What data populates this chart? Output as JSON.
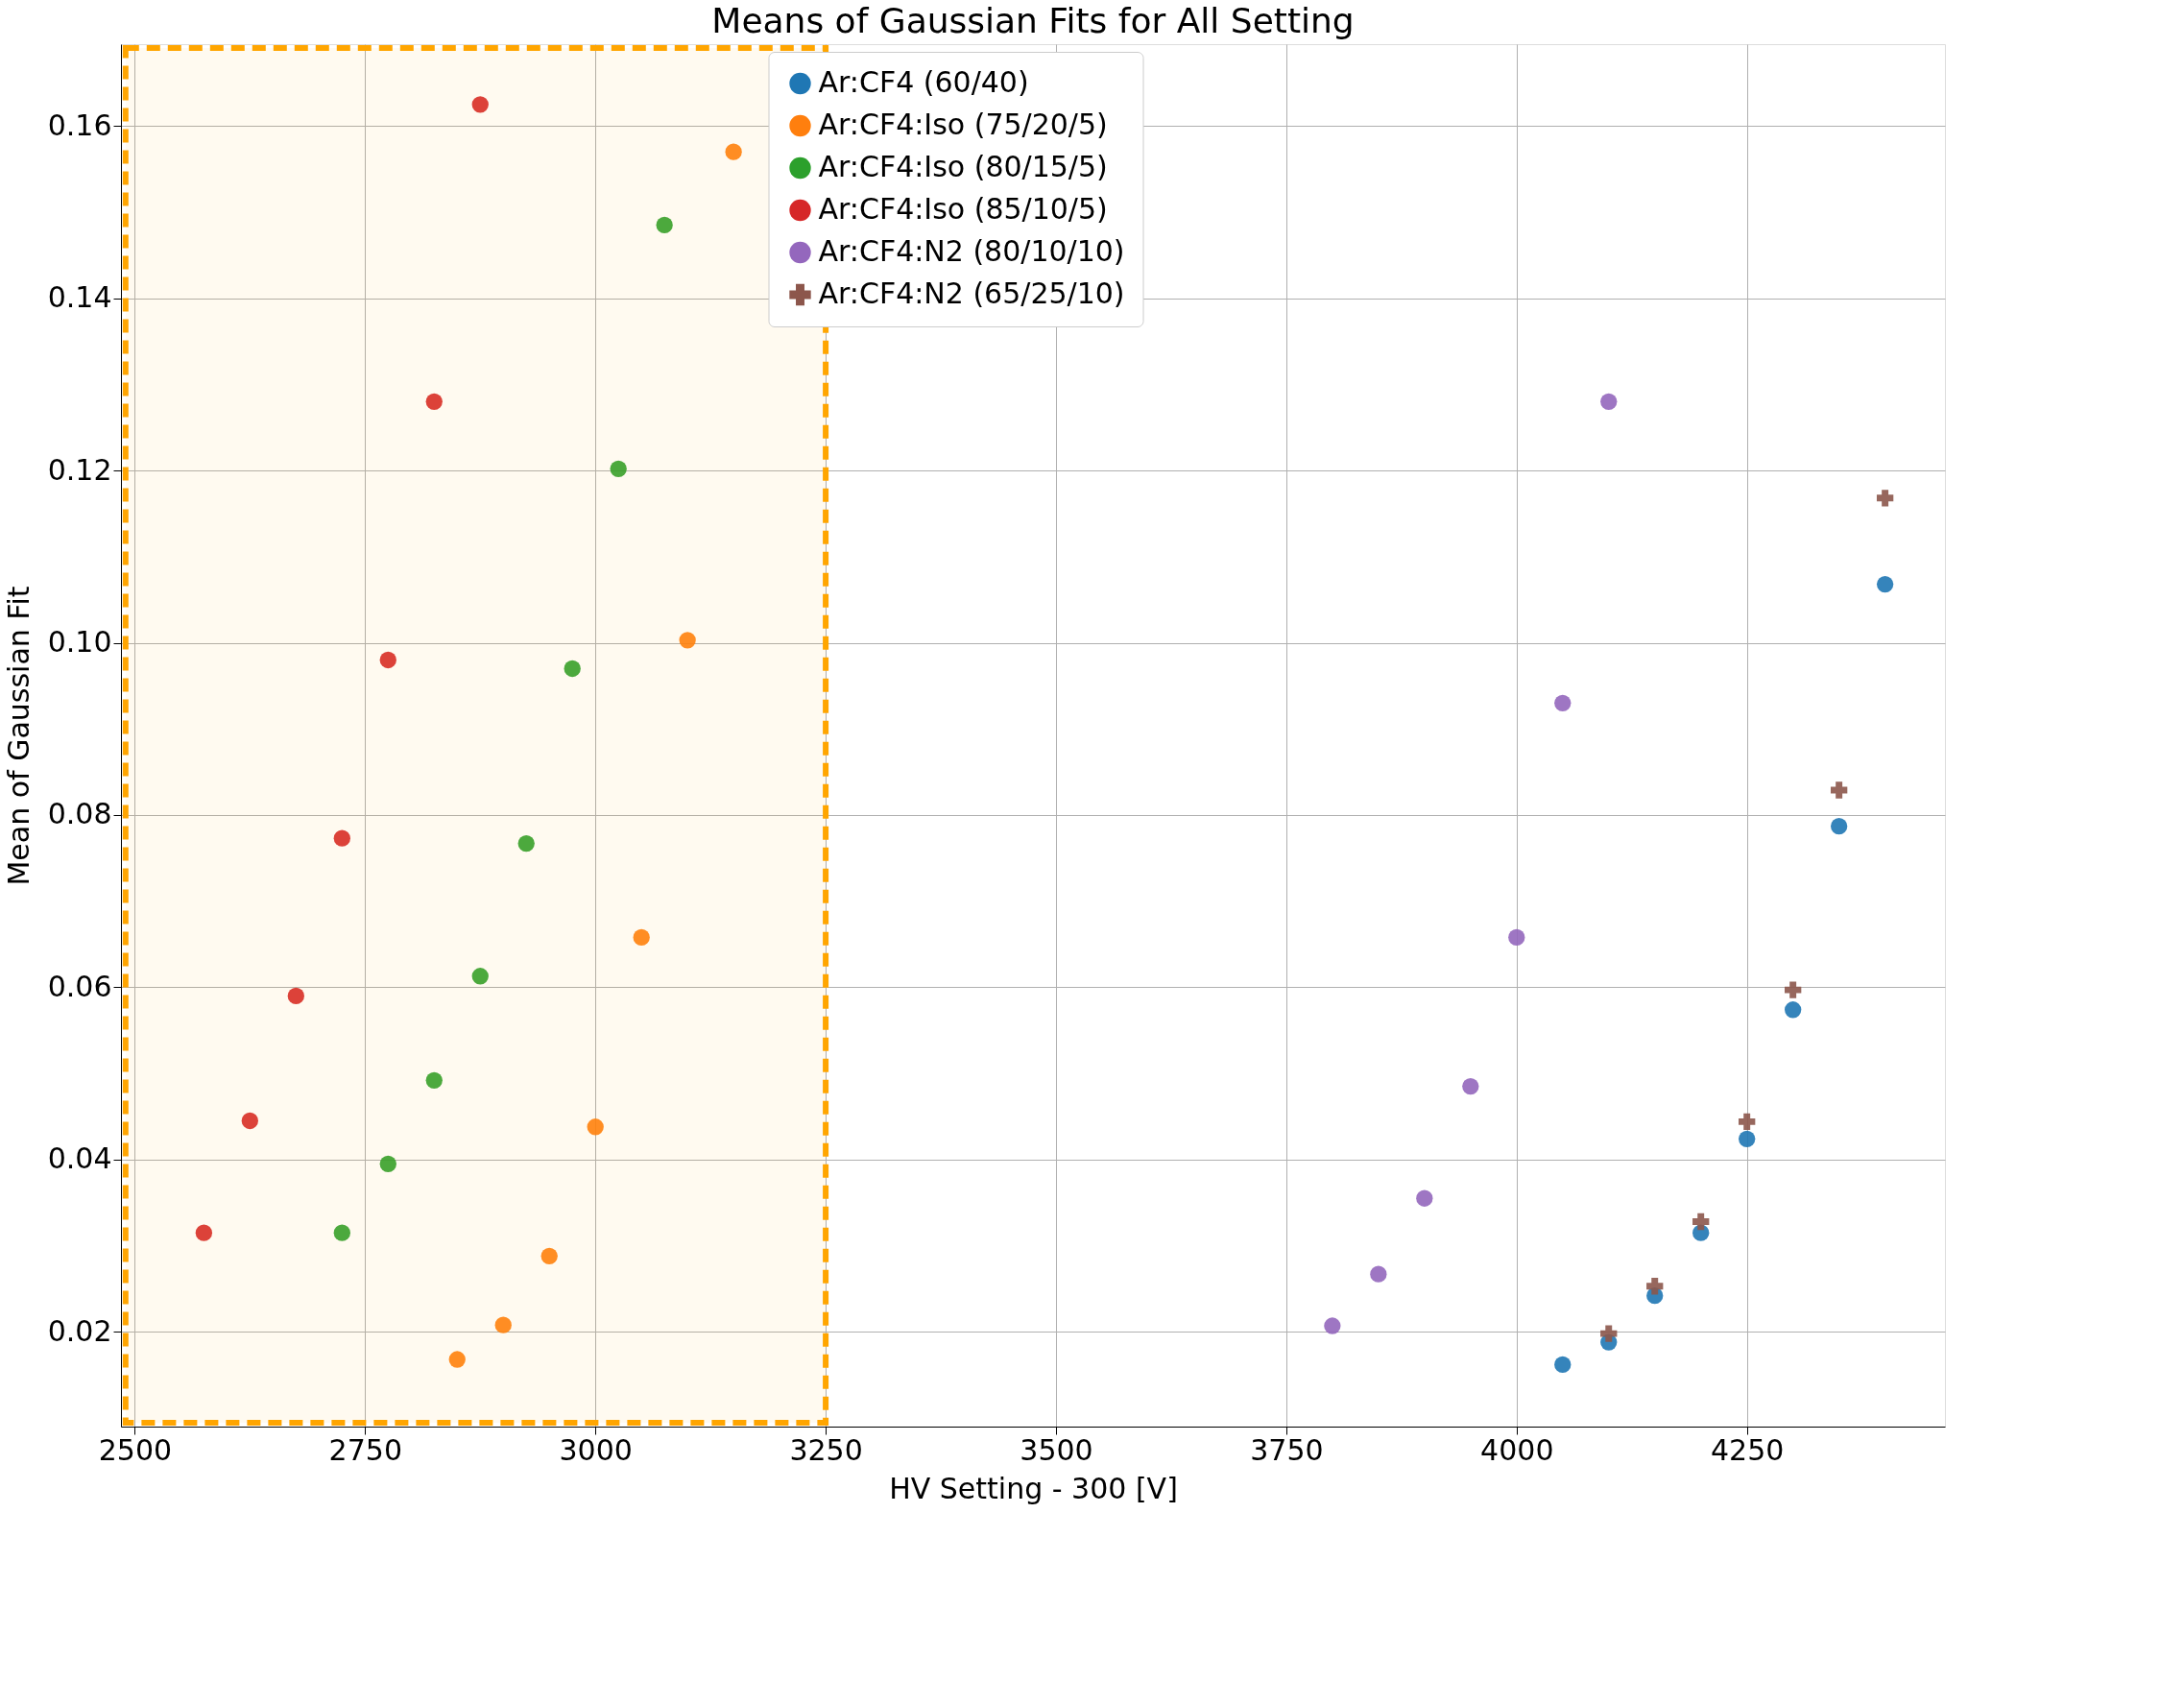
{
  "chart_data": {
    "type": "scatter",
    "title": "Means of Gaussian Fits for All Setting",
    "xlabel": "HV Setting - 300 [V]",
    "ylabel": "Mean of Gaussian Fit",
    "xlim": [
      2485,
      4465
    ],
    "ylim": [
      0.009,
      0.1695
    ],
    "xticks": [
      2500,
      2750,
      3000,
      3250,
      3500,
      3750,
      4000,
      4250
    ],
    "yticks": [
      {
        "value": 0.02,
        "label": "0.02"
      },
      {
        "value": 0.04,
        "label": "0.04"
      },
      {
        "value": 0.06,
        "label": "0.06"
      },
      {
        "value": 0.08,
        "label": "0.08"
      },
      {
        "value": 0.1,
        "label": "0.10"
      },
      {
        "value": 0.12,
        "label": "0.12"
      },
      {
        "value": 0.14,
        "label": "0.14"
      },
      {
        "value": 0.16,
        "label": "0.16"
      }
    ],
    "grid": true,
    "legend": "top",
    "bands": [
      {
        "axis": "x",
        "from": 2490,
        "to": 3250,
        "color": "#ffa500"
      }
    ],
    "series": [
      {
        "name": "Ar:CF4 (60/40)",
        "color": "#1f77b4",
        "marker": "circle",
        "x": [
          4050,
          4100,
          4150,
          4200,
          4250,
          4300,
          4350,
          4400
        ],
        "values": [
          0.0162,
          0.0188,
          0.0242,
          0.0315,
          0.0424,
          0.0574,
          0.0787,
          0.1068
        ]
      },
      {
        "name": "Ar:CF4:Iso (75/20/5)",
        "color": "#ff7f0e",
        "marker": "circle",
        "x": [
          2850,
          2900,
          2950,
          3000,
          3050,
          3100,
          3150
        ],
        "values": [
          0.0168,
          0.0208,
          0.0288,
          0.0438,
          0.0658,
          0.1003,
          0.157
        ]
      },
      {
        "name": "Ar:CF4:Iso (80/15/5)",
        "color": "#2ca02c",
        "marker": "circle",
        "x": [
          2725,
          2775,
          2825,
          2875,
          2925,
          2975,
          3025,
          3075
        ],
        "values": [
          0.0315,
          0.0395,
          0.0492,
          0.0613,
          0.0767,
          0.097,
          0.1202,
          0.1485
        ]
      },
      {
        "name": "Ar:CF4:Iso (85/10/5)",
        "color": "#d62728",
        "marker": "circle",
        "x": [
          2575,
          2625,
          2675,
          2725,
          2775,
          2825,
          2875
        ],
        "values": [
          0.0315,
          0.0445,
          0.059,
          0.0773,
          0.098,
          0.128,
          0.1625
        ]
      },
      {
        "name": "Ar:CF4:N2 (80/10/10)",
        "color": "#9467bd",
        "marker": "circle",
        "x": [
          3800,
          3850,
          3900,
          3950,
          4000,
          4050,
          4100
        ],
        "values": [
          0.0207,
          0.0267,
          0.0355,
          0.0485,
          0.0658,
          0.093,
          0.128
        ]
      },
      {
        "name": "Ar:CF4:N2 (65/25/10)",
        "color": "#8c564b",
        "marker": "cross",
        "x": [
          4100,
          4150,
          4200,
          4250,
          4300,
          4350,
          4400
        ],
        "values": [
          0.0198,
          0.0253,
          0.0328,
          0.0444,
          0.0597,
          0.0829,
          0.1168
        ]
      }
    ]
  }
}
